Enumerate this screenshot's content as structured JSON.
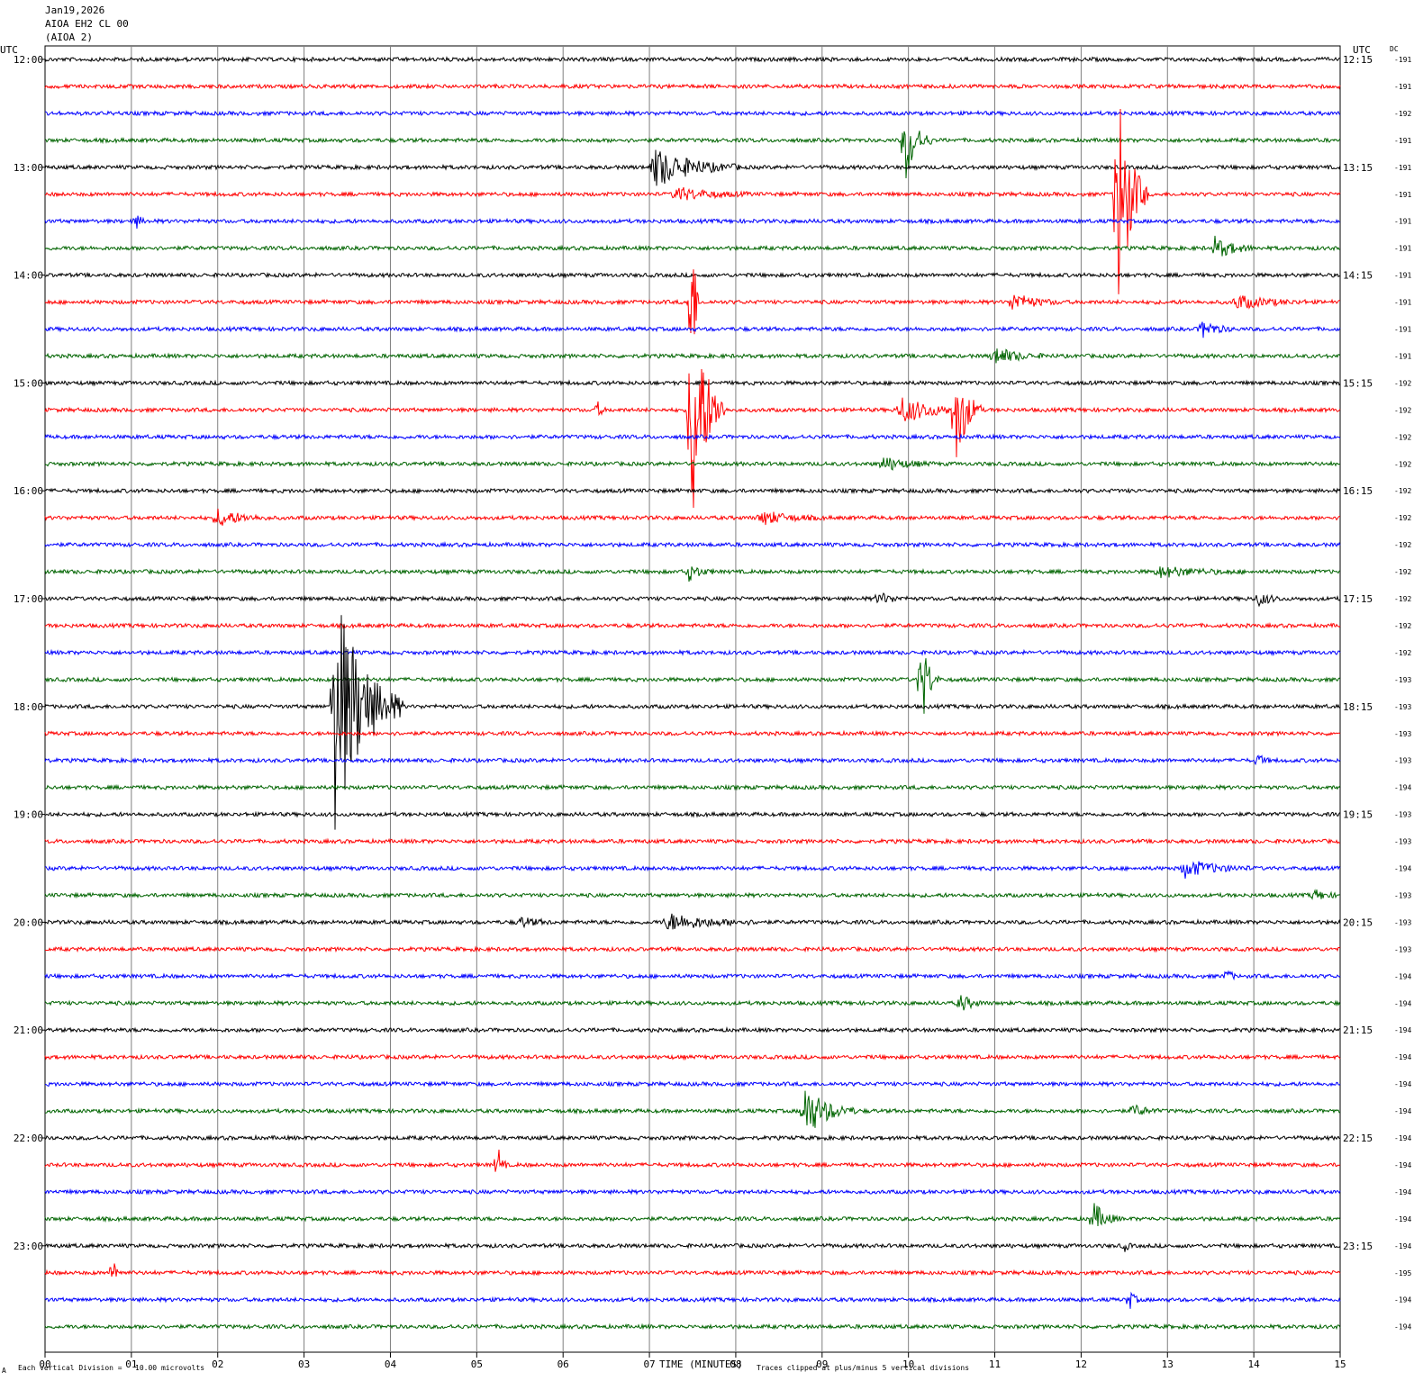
{
  "header": {
    "date": "Jan19,2026",
    "station": "AIOA EH2 CL 00",
    "station_alias": "(AIOA 2)"
  },
  "left_axis_label": "UTC",
  "right_axis_label": "UTC",
  "dc_label": "DC",
  "footer": {
    "scale_note": "Each Vertical Division =   10.00 microvolts",
    "clip_note": "Traces clipped at plus/minus 5 vertical divisions",
    "corner_mark": "A"
  },
  "colors": {
    "cycle": [
      "#000000",
      "#ff0000",
      "#0000ff",
      "#006400"
    ],
    "grid": "#808080"
  },
  "chart_data": {
    "type": "line",
    "title": "",
    "xlabel": "TIME (MINUTES)",
    "xlim": [
      0,
      15
    ],
    "x_ticks": [
      "00",
      "01",
      "02",
      "03",
      "04",
      "05",
      "06",
      "07",
      "08",
      "09",
      "10",
      "11",
      "12",
      "13",
      "14",
      "15"
    ],
    "left_time_labels": [
      "12:00",
      "13:00",
      "14:00",
      "15:00",
      "16:00",
      "17:00",
      "18:00",
      "19:00",
      "20:00",
      "21:00",
      "22:00",
      "23:00"
    ],
    "right_time_labels": [
      "12:15",
      "13:15",
      "14:15",
      "15:15",
      "16:15",
      "17:15",
      "18:15",
      "19:15",
      "20:15",
      "21:15",
      "22:15",
      "23:15"
    ],
    "dc_offsets": [
      "-191",
      "-191",
      "-192",
      "-191",
      "-191",
      "-191",
      "-191",
      "-191",
      "-191",
      "-191",
      "-191",
      "-191",
      "-192",
      "-192",
      "-192",
      "-192",
      "-192",
      "-192",
      "-192",
      "-192",
      "-192",
      "-192",
      "-192",
      "-193",
      "-193",
      "-193",
      "-193",
      "-194",
      "-193",
      "-193",
      "-194",
      "-193",
      "-193",
      "-193",
      "-194",
      "-194",
      "-194",
      "-194",
      "-194",
      "-194",
      "-194",
      "-194",
      "-194",
      "-194",
      "-194",
      "-195",
      "-194",
      "-194"
    ],
    "events": [
      {
        "trace": 4,
        "minute": 7.05,
        "amp": 24,
        "duration": 1.0
      },
      {
        "trace": 5,
        "minute": 7.3,
        "amp": 8,
        "duration": 0.9
      },
      {
        "trace": 3,
        "minute": 9.97,
        "amp": 45,
        "duration": 0.3
      },
      {
        "trace": 5,
        "minute": 12.42,
        "amp": 150,
        "duration": 0.35
      },
      {
        "trace": 6,
        "minute": 1.05,
        "amp": 8,
        "duration": 0.15
      },
      {
        "trace": 7,
        "minute": 13.55,
        "amp": 12,
        "duration": 0.5
      },
      {
        "trace": 9,
        "minute": 11.2,
        "amp": 10,
        "duration": 0.6
      },
      {
        "trace": 9,
        "minute": 13.8,
        "amp": 8,
        "duration": 0.8
      },
      {
        "trace": 9,
        "minute": 7.48,
        "amp": 150,
        "duration": 0.1
      },
      {
        "trace": 10,
        "minute": 13.4,
        "amp": 10,
        "duration": 0.4
      },
      {
        "trace": 11,
        "minute": 11.0,
        "amp": 10,
        "duration": 0.6
      },
      {
        "trace": 13,
        "minute": 7.48,
        "amp": 150,
        "duration": 0.4
      },
      {
        "trace": 13,
        "minute": 10.55,
        "amp": 60,
        "duration": 0.3
      },
      {
        "trace": 13,
        "minute": 9.9,
        "amp": 15,
        "duration": 0.9
      },
      {
        "trace": 13,
        "minute": 6.4,
        "amp": 10,
        "duration": 0.1
      },
      {
        "trace": 15,
        "minute": 9.7,
        "amp": 8,
        "duration": 0.6
      },
      {
        "trace": 17,
        "minute": 2.0,
        "amp": 10,
        "duration": 0.6
      },
      {
        "trace": 17,
        "minute": 8.3,
        "amp": 8,
        "duration": 0.7
      },
      {
        "trace": 19,
        "minute": 7.45,
        "amp": 10,
        "duration": 0.3
      },
      {
        "trace": 19,
        "minute": 12.9,
        "amp": 6,
        "duration": 1.0
      },
      {
        "trace": 20,
        "minute": 9.65,
        "amp": 8,
        "duration": 0.3
      },
      {
        "trace": 20,
        "minute": 14.05,
        "amp": 8,
        "duration": 0.3
      },
      {
        "trace": 23,
        "minute": 10.15,
        "amp": 60,
        "duration": 0.2
      },
      {
        "trace": 24,
        "minute": 3.35,
        "amp": 150,
        "duration": 0.8
      },
      {
        "trace": 26,
        "minute": 14.05,
        "amp": 8,
        "duration": 0.15
      },
      {
        "trace": 30,
        "minute": 13.2,
        "amp": 10,
        "duration": 0.8
      },
      {
        "trace": 31,
        "minute": 14.7,
        "amp": 6,
        "duration": 0.3
      },
      {
        "trace": 32,
        "minute": 7.2,
        "amp": 10,
        "duration": 1.1
      },
      {
        "trace": 32,
        "minute": 5.5,
        "amp": 6,
        "duration": 0.4
      },
      {
        "trace": 34,
        "minute": 13.7,
        "amp": 10,
        "duration": 0.1
      },
      {
        "trace": 35,
        "minute": 10.6,
        "amp": 10,
        "duration": 0.3
      },
      {
        "trace": 39,
        "minute": 8.8,
        "amp": 30,
        "duration": 0.6
      },
      {
        "trace": 39,
        "minute": 12.6,
        "amp": 8,
        "duration": 0.3
      },
      {
        "trace": 41,
        "minute": 5.25,
        "amp": 20,
        "duration": 0.1
      },
      {
        "trace": 43,
        "minute": 12.15,
        "amp": 18,
        "duration": 0.3
      },
      {
        "trace": 44,
        "minute": 12.5,
        "amp": 6,
        "duration": 0.1
      },
      {
        "trace": 45,
        "minute": 0.8,
        "amp": 15,
        "duration": 0.1
      },
      {
        "trace": 46,
        "minute": 12.55,
        "amp": 12,
        "duration": 0.15
      }
    ]
  }
}
